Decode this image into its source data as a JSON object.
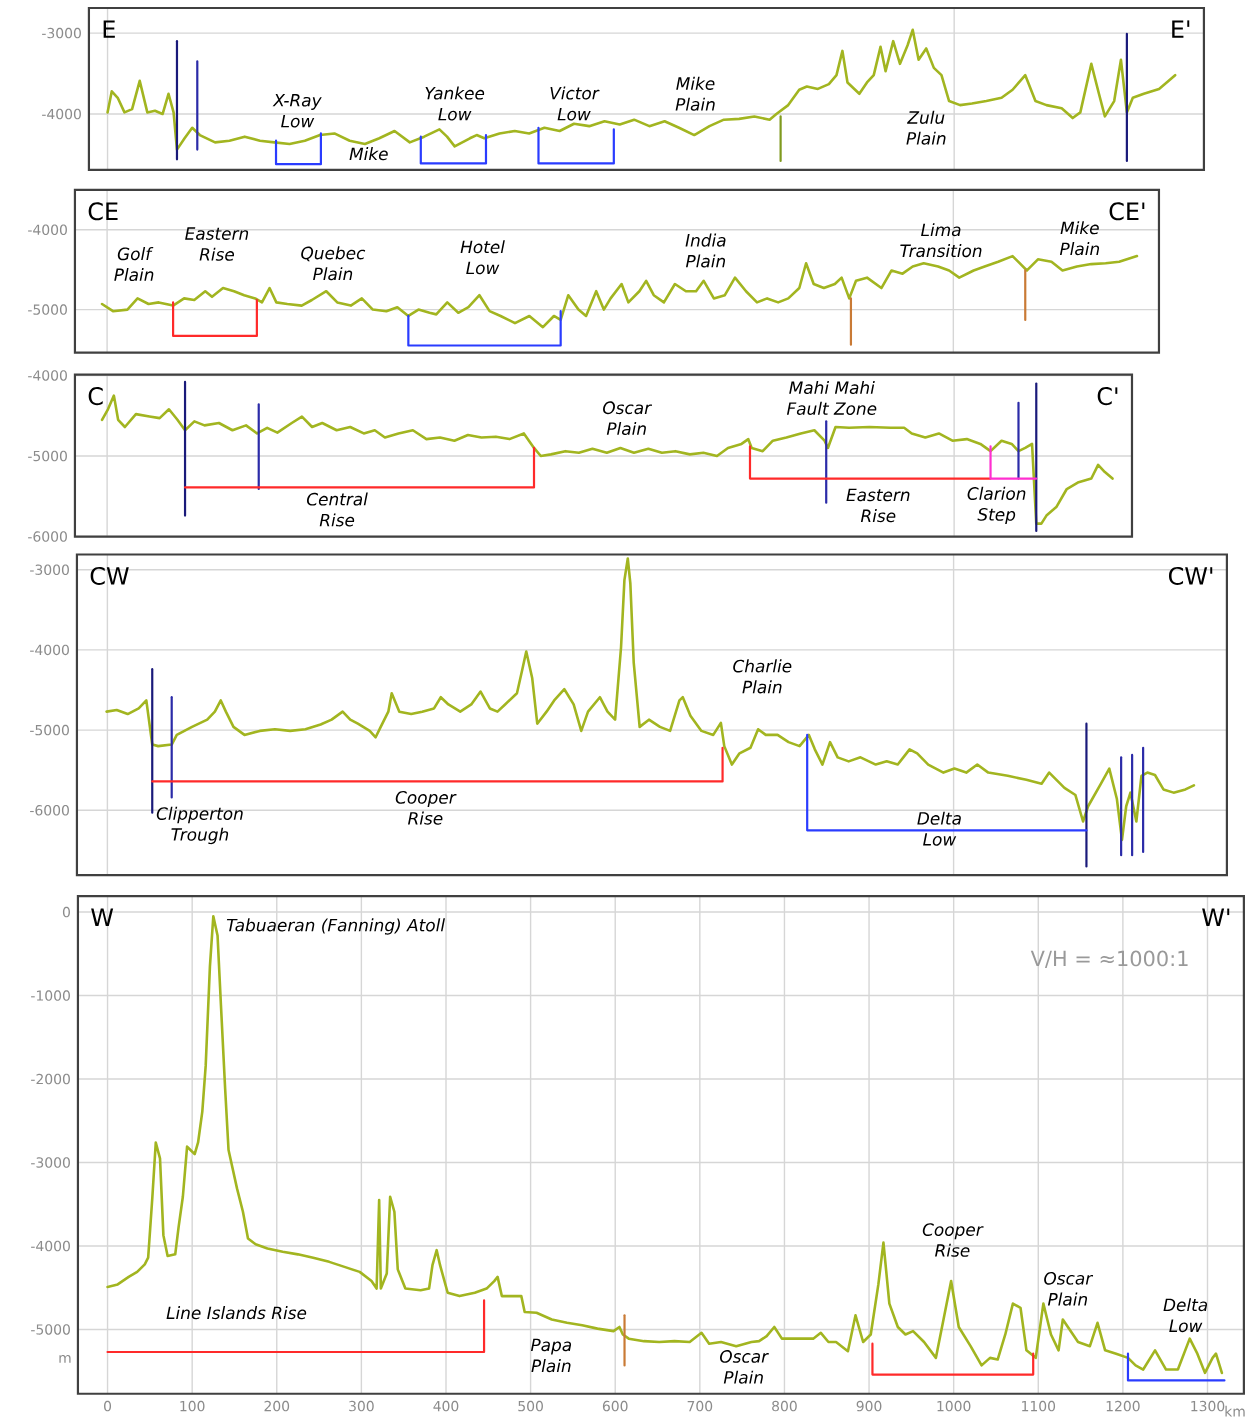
{
  "chart_data": [
    {
      "type": "line",
      "xlim": [
        -22,
        1295
      ],
      "ylim": [
        -4690,
        -2690
      ],
      "xticks": [
        0,
        1000
      ],
      "yticks": [
        -3000,
        -4000
      ],
      "tick_labels": "y",
      "grid": true,
      "series": [
        {
          "color": "#a2b520",
          "x": [
            0,
            5,
            12,
            20,
            29,
            38,
            47,
            56,
            65,
            72,
            78,
            82,
            91,
            100,
            109,
            127,
            144,
            162,
            180,
            197,
            215,
            233,
            251,
            268,
            286,
            304,
            321,
            339,
            357,
            374,
            392,
            401,
            410,
            428,
            436,
            445,
            463,
            481,
            498,
            516,
            534,
            551,
            569,
            587,
            605,
            622,
            640,
            658,
            675,
            693,
            711,
            728,
            746,
            764,
            782,
            790,
            804,
            817,
            826,
            839,
            852,
            861,
            868,
            874,
            888,
            897,
            905,
            913,
            919,
            928,
            936,
            945,
            951,
            958,
            967,
            976,
            985,
            994,
            1007,
            1021,
            1038,
            1056,
            1069,
            1084,
            1096,
            1109,
            1127,
            1140,
            1149,
            1162,
            1171,
            1178,
            1189,
            1197,
            1204,
            1211,
            1224,
            1242,
            1251,
            1261
          ],
          "values": [
            -3980,
            -3720,
            -3800,
            -3980,
            -3940,
            -3590,
            -3980,
            -3960,
            -4000,
            -3750,
            -3980,
            -4440,
            -4300,
            -4170,
            -4260,
            -4350,
            -4330,
            -4280,
            -4330,
            -4350,
            -4370,
            -4330,
            -4260,
            -4240,
            -4330,
            -4370,
            -4300,
            -4210,
            -4350,
            -4280,
            -4190,
            -4280,
            -4400,
            -4300,
            -4260,
            -4300,
            -4240,
            -4210,
            -4240,
            -4170,
            -4210,
            -4120,
            -4150,
            -4090,
            -4130,
            -4070,
            -4150,
            -4090,
            -4170,
            -4260,
            -4150,
            -4070,
            -4060,
            -4030,
            -4070,
            -4000,
            -3890,
            -3700,
            -3660,
            -3690,
            -3630,
            -3520,
            -3220,
            -3610,
            -3750,
            -3610,
            -3520,
            -3170,
            -3470,
            -3100,
            -3380,
            -3150,
            -2960,
            -3330,
            -3190,
            -3430,
            -3520,
            -3840,
            -3890,
            -3870,
            -3840,
            -3800,
            -3700,
            -3520,
            -3840,
            -3890,
            -3930,
            -4050,
            -3980,
            -3380,
            -3750,
            -4030,
            -3840,
            -3330,
            -3980,
            -3800,
            -3750,
            -3690,
            -3610,
            -3520
          ]
        },
        {
          "color": "#7f9a1e",
          "x": [
            795,
            795
          ],
          "values": [
            -4030,
            -4580
          ]
        },
        {
          "color": "#1a1a7a",
          "x": [
            82,
            82
          ],
          "values": [
            -3100,
            -4560
          ]
        },
        {
          "color": "#2b2ba8",
          "x": [
            106,
            106
          ],
          "values": [
            -3350,
            -4440
          ]
        },
        {
          "color": "#1a1a7a",
          "x": [
            1204,
            1204
          ],
          "values": [
            -3010,
            -4580
          ]
        },
        {
          "color": "#2a3cff",
          "x": [
            199,
            199,
            252,
            252
          ],
          "values": [
            -4330,
            -4620,
            -4620,
            -4240
          ]
        },
        {
          "color": "#2a3cff",
          "x": [
            370,
            370,
            447,
            447
          ],
          "values": [
            -4280,
            -4610,
            -4610,
            -4260
          ]
        },
        {
          "color": "#2a3cff",
          "x": [
            509,
            509,
            598,
            598
          ],
          "values": [
            -4170,
            -4610,
            -4610,
            -4190
          ]
        }
      ],
      "annotations": [
        "E",
        "E'",
        "X-Ray Low",
        "Mike",
        "Yankee Low",
        "Victor Low",
        "Mike Plain",
        "Zulu Plain"
      ]
    },
    {
      "type": "line",
      "xlim": [
        -38,
        1243
      ],
      "ylim": [
        -5540,
        -3500
      ],
      "xticks": [
        0,
        1000
      ],
      "yticks": [
        -4000,
        -5000
      ],
      "tick_labels": "y",
      "grid": true,
      "series": [
        {
          "color": "#a2b520",
          "x": [
            -6,
            7,
            24,
            36,
            49,
            61,
            78,
            91,
            103,
            116,
            124,
            137,
            150,
            162,
            175,
            183,
            192,
            200,
            213,
            230,
            242,
            259,
            272,
            288,
            301,
            314,
            330,
            343,
            356,
            368,
            381,
            389,
            402,
            415,
            427,
            440,
            452,
            465,
            482,
            499,
            515,
            528,
            536,
            545,
            557,
            566,
            578,
            587,
            595,
            608,
            616,
            629,
            637,
            646,
            658,
            671,
            684,
            696,
            705,
            717,
            730,
            742,
            755,
            768,
            780,
            793,
            805,
            818,
            826,
            835,
            847,
            860,
            868,
            877,
            885,
            898,
            915,
            927,
            940,
            952,
            965,
            982,
            995,
            1007,
            1024,
            1037,
            1053,
            1070,
            1087,
            1100,
            1116,
            1129,
            1146,
            1163,
            1180,
            1196,
            1217
          ],
          "values": [
            -4930,
            -5020,
            -5000,
            -4860,
            -4930,
            -4910,
            -4950,
            -4860,
            -4880,
            -4770,
            -4840,
            -4730,
            -4770,
            -4820,
            -4860,
            -4910,
            -4730,
            -4910,
            -4930,
            -4950,
            -4880,
            -4770,
            -4910,
            -4950,
            -4860,
            -5000,
            -5020,
            -4970,
            -5080,
            -5000,
            -5040,
            -5060,
            -4910,
            -5040,
            -4970,
            -4820,
            -5020,
            -5080,
            -5170,
            -5080,
            -5220,
            -5080,
            -5130,
            -4820,
            -5000,
            -5080,
            -4770,
            -5000,
            -4860,
            -4680,
            -4910,
            -4770,
            -4640,
            -4820,
            -4910,
            -4680,
            -4770,
            -4770,
            -4640,
            -4860,
            -4820,
            -4600,
            -4770,
            -4910,
            -4860,
            -4910,
            -4860,
            -4730,
            -4420,
            -4680,
            -4730,
            -4680,
            -4600,
            -4860,
            -4640,
            -4600,
            -4730,
            -4510,
            -4550,
            -4460,
            -4420,
            -4460,
            -4510,
            -4600,
            -4510,
            -4460,
            -4400,
            -4330,
            -4510,
            -4370,
            -4400,
            -4510,
            -4460,
            -4430,
            -4420,
            -4400,
            -4330
          ]
        },
        {
          "color": "#c97a35",
          "x": [
            879,
            879
          ],
          "values": [
            -4860,
            -5440
          ]
        },
        {
          "color": "#c97a35",
          "x": [
            1085,
            1085
          ],
          "values": [
            -4510,
            -5130
          ]
        },
        {
          "color": "#ff2a2a",
          "x": [
            78,
            78,
            177,
            177
          ],
          "values": [
            -4910,
            -5330,
            -5330,
            -4880
          ]
        },
        {
          "color": "#2a3cff",
          "x": [
            356,
            356,
            536,
            536
          ],
          "values": [
            -5080,
            -5450,
            -5450,
            -5020
          ]
        }
      ],
      "annotations": [
        "CE",
        "CE'",
        "Golf Plain",
        "Eastern Rise",
        "Quebec Plain",
        "Hotel Low",
        "India Plain",
        "Lima Transition",
        "Mike Plain"
      ]
    },
    {
      "type": "line",
      "xlim": [
        -38,
        1210
      ],
      "ylim": [
        -6000,
        -3990
      ],
      "xticks": [
        0,
        1000
      ],
      "yticks": [
        -4000,
        -5000,
        -6000
      ],
      "tick_labels": "y",
      "grid": true,
      "series": [
        {
          "color": "#a2b520",
          "x": [
            -6,
            1,
            8,
            13,
            21,
            34,
            50,
            62,
            73,
            83,
            92,
            103,
            115,
            132,
            148,
            164,
            177,
            189,
            201,
            218,
            230,
            242,
            254,
            271,
            287,
            303,
            316,
            328,
            344,
            361,
            377,
            393,
            410,
            426,
            442,
            459,
            475,
            492,
            504,
            512,
            524,
            541,
            557,
            573,
            590,
            606,
            622,
            639,
            655,
            671,
            688,
            704,
            720,
            733,
            749,
            757,
            761,
            774,
            786,
            802,
            819,
            835,
            847,
            851,
            860,
            876,
            900,
            925,
            941,
            950,
            966,
            982,
            998,
            1015,
            1031,
            1043,
            1056,
            1068,
            1076,
            1084,
            1092,
            1097,
            1103,
            1109,
            1121,
            1133,
            1146,
            1162,
            1170,
            1178,
            1187
          ],
          "values": [
            -4550,
            -4420,
            -4250,
            -4550,
            -4640,
            -4480,
            -4510,
            -4530,
            -4420,
            -4550,
            -4680,
            -4570,
            -4620,
            -4590,
            -4680,
            -4620,
            -4720,
            -4650,
            -4710,
            -4590,
            -4510,
            -4640,
            -4590,
            -4680,
            -4640,
            -4720,
            -4680,
            -4770,
            -4720,
            -4680,
            -4790,
            -4770,
            -4810,
            -4740,
            -4770,
            -4760,
            -4790,
            -4720,
            -4900,
            -5000,
            -4980,
            -4940,
            -4960,
            -4910,
            -4960,
            -4900,
            -4960,
            -4910,
            -4960,
            -4940,
            -4980,
            -4960,
            -5000,
            -4900,
            -4850,
            -4790,
            -4900,
            -4940,
            -4810,
            -4770,
            -4720,
            -4680,
            -4810,
            -4900,
            -4640,
            -4650,
            -4640,
            -4650,
            -4650,
            -4720,
            -4770,
            -4720,
            -4810,
            -4790,
            -4850,
            -4940,
            -4810,
            -4850,
            -4940,
            -4900,
            -4850,
            -5840,
            -5840,
            -5740,
            -5630,
            -5410,
            -5330,
            -5280,
            -5110,
            -5200,
            -5280
          ]
        },
        {
          "color": "#1a1a7a",
          "x": [
            92,
            92
          ],
          "values": [
            -4080,
            -5740
          ]
        },
        {
          "color": "#2b2ba8",
          "x": [
            179,
            179
          ],
          "values": [
            -4360,
            -5410
          ]
        },
        {
          "color": "#2b2ba8",
          "x": [
            849,
            849
          ],
          "values": [
            -4570,
            -5580
          ]
        },
        {
          "color": "#2b2ba8",
          "x": [
            1076,
            1076
          ],
          "values": [
            -4340,
            -5280
          ]
        },
        {
          "color": "#1a1a7a",
          "x": [
            1097,
            1097
          ],
          "values": [
            -4100,
            -5930
          ]
        },
        {
          "color": "#ff2a2a",
          "x": [
            92,
            504,
            504
          ],
          "values": [
            -5390,
            -5390,
            -4900
          ]
        },
        {
          "color": "#ff2a2a",
          "x": [
            759,
            759,
            1043
          ],
          "values": [
            -4880,
            -5280,
            -5280
          ]
        },
        {
          "color": "#ff2fd0",
          "x": [
            1043,
            1043,
            1097
          ],
          "values": [
            -4880,
            -5280,
            -5280
          ]
        }
      ],
      "annotations": [
        "C",
        "C'",
        "Oscar Plain",
        "Mahi Mahi Fault Zone",
        "Central Rise",
        "Eastern Rise",
        "Clarion Step"
      ]
    },
    {
      "type": "line",
      "xlim": [
        -36,
        1323
      ],
      "ylim": [
        -6810,
        -2810
      ],
      "xticks": [
        0,
        1000
      ],
      "yticks": [
        -3000,
        -4000,
        -5000,
        -6000
      ],
      "tick_labels": "y",
      "grid": true,
      "series": [
        {
          "color": "#a2b520",
          "x": [
            -1,
            11,
            24,
            37,
            46,
            53,
            60,
            76,
            82,
            100,
            118,
            127,
            134,
            140,
            149,
            162,
            180,
            198,
            216,
            234,
            252,
            265,
            278,
            287,
            296,
            310,
            317,
            323,
            332,
            336,
            345,
            359,
            372,
            386,
            394,
            403,
            417,
            430,
            441,
            452,
            461,
            470,
            484,
            490,
            495,
            502,
            508,
            519,
            528,
            540,
            551,
            560,
            568,
            582,
            591,
            600,
            607,
            611,
            615,
            618,
            622,
            629,
            640,
            653,
            665,
            676,
            680,
            689,
            702,
            716,
            725,
            729,
            738,
            747,
            760,
            769,
            778,
            792,
            805,
            818,
            829,
            836,
            845,
            854,
            863,
            876,
            890,
            908,
            921,
            934,
            948,
            957,
            970,
            988,
            1001,
            1015,
            1028,
            1041,
            1064,
            1086,
            1104,
            1113,
            1131,
            1144,
            1153,
            1159,
            1174,
            1184,
            1193,
            1199,
            1204,
            1209,
            1216,
            1222,
            1229,
            1238,
            1248,
            1260,
            1274,
            1284
          ],
          "values": [
            -4770,
            -4750,
            -4800,
            -4730,
            -4630,
            -5180,
            -5200,
            -5180,
            -5060,
            -4960,
            -4870,
            -4770,
            -4630,
            -4770,
            -4960,
            -5060,
            -5010,
            -4990,
            -5010,
            -4990,
            -4930,
            -4870,
            -4770,
            -4870,
            -4920,
            -5010,
            -5090,
            -4960,
            -4770,
            -4540,
            -4770,
            -4800,
            -4770,
            -4730,
            -4590,
            -4680,
            -4770,
            -4680,
            -4520,
            -4730,
            -4770,
            -4680,
            -4540,
            -4260,
            -4020,
            -4350,
            -4920,
            -4770,
            -4630,
            -4490,
            -4680,
            -5010,
            -4770,
            -4590,
            -4770,
            -4870,
            -3970,
            -3130,
            -2860,
            -3170,
            -4160,
            -4960,
            -4870,
            -4960,
            -5010,
            -4630,
            -4590,
            -4820,
            -5010,
            -5060,
            -4910,
            -5200,
            -5430,
            -5290,
            -5220,
            -4990,
            -5060,
            -5060,
            -5150,
            -5200,
            -5060,
            -5240,
            -5430,
            -5150,
            -5340,
            -5390,
            -5340,
            -5430,
            -5390,
            -5430,
            -5240,
            -5290,
            -5430,
            -5530,
            -5480,
            -5530,
            -5430,
            -5530,
            -5570,
            -5620,
            -5670,
            -5530,
            -5720,
            -5810,
            -6140,
            -5950,
            -5670,
            -5480,
            -5860,
            -6370,
            -5950,
            -5780,
            -6140,
            -5570,
            -5530,
            -5560,
            -5740,
            -5780,
            -5740,
            -5690
          ]
        },
        {
          "color": "#1a1a7a",
          "x": [
            53,
            53
          ],
          "values": [
            -4240,
            -6030
          ]
        },
        {
          "color": "#2b2ba8",
          "x": [
            76,
            76
          ],
          "values": [
            -4590,
            -5840
          ]
        },
        {
          "color": "#1a1a7a",
          "x": [
            1157,
            1157
          ],
          "values": [
            -4920,
            -6700
          ]
        },
        {
          "color": "#2b2ba8",
          "x": [
            1198,
            1198
          ],
          "values": [
            -5340,
            -6560
          ]
        },
        {
          "color": "#2b2ba8",
          "x": [
            1211,
            1211
          ],
          "values": [
            -5310,
            -6560
          ]
        },
        {
          "color": "#2b2ba8",
          "x": [
            1224,
            1224
          ],
          "values": [
            -5220,
            -6520
          ]
        },
        {
          "color": "#ff2a2a",
          "x": [
            53,
            727,
            727
          ],
          "values": [
            -5640,
            -5640,
            -5220
          ]
        },
        {
          "color": "#2a3cff",
          "x": [
            827,
            827,
            1157
          ],
          "values": [
            -5060,
            -6250,
            -6250
          ]
        }
      ],
      "annotations": [
        "CW",
        "CW'",
        "Clipperton Trough",
        "Cooper Rise",
        "Charlie Plain",
        "Delta Low"
      ]
    },
    {
      "type": "line",
      "xlim": [
        -35,
        1343
      ],
      "ylim": [
        -5770,
        190
      ],
      "xticks": [
        0,
        100,
        200,
        300,
        400,
        500,
        600,
        700,
        800,
        900,
        1000,
        1100,
        1200,
        1300
      ],
      "yticks": [
        0,
        -1000,
        -2000,
        -3000,
        -4000,
        -5000
      ],
      "grid": true,
      "xlabel": "km",
      "ylabel": "m",
      "series": [
        {
          "color": "#a2b520",
          "x": [
            0,
            12,
            25,
            35,
            44,
            48,
            53,
            57,
            62,
            66,
            71,
            80,
            84,
            89,
            94,
            98,
            103,
            107,
            112,
            116,
            121,
            125,
            130,
            134,
            139,
            143,
            153,
            160,
            166,
            175,
            189,
            207,
            225,
            243,
            262,
            280,
            298,
            312,
            318,
            321,
            323,
            330,
            334,
            339,
            343,
            352,
            370,
            380,
            384,
            389,
            393,
            402,
            416,
            434,
            448,
            457,
            461,
            466,
            475,
            489,
            493,
            507,
            525,
            543,
            561,
            579,
            598,
            605,
            609,
            616,
            634,
            652,
            670,
            688,
            702,
            711,
            725,
            743,
            761,
            770,
            779,
            788,
            797,
            816,
            834,
            843,
            852,
            861,
            875,
            884,
            893,
            902,
            911,
            917,
            924,
            934,
            943,
            952,
            965,
            979,
            988,
            997,
            1006,
            1020,
            1033,
            1043,
            1052,
            1061,
            1070,
            1079,
            1086,
            1097,
            1106,
            1115,
            1124,
            1129,
            1141,
            1147,
            1161,
            1170,
            1179,
            1192,
            1206,
            1215,
            1224,
            1238,
            1251,
            1265,
            1279,
            1288,
            1297,
            1306,
            1310,
            1317
          ],
          "values": [
            -4490,
            -4460,
            -4370,
            -4310,
            -4220,
            -4140,
            -3410,
            -2760,
            -2950,
            -3870,
            -4120,
            -4100,
            -3770,
            -3410,
            -2810,
            -2850,
            -2900,
            -2760,
            -2390,
            -1840,
            -650,
            -50,
            -280,
            -1110,
            -2120,
            -2850,
            -3310,
            -3590,
            -3910,
            -3980,
            -4030,
            -4070,
            -4100,
            -4140,
            -4190,
            -4250,
            -4310,
            -4420,
            -4510,
            -3450,
            -4510,
            -4330,
            -3410,
            -3590,
            -4280,
            -4510,
            -4530,
            -4510,
            -4230,
            -4050,
            -4230,
            -4560,
            -4600,
            -4560,
            -4510,
            -4420,
            -4370,
            -4600,
            -4600,
            -4600,
            -4790,
            -4800,
            -4880,
            -4920,
            -4950,
            -4990,
            -5020,
            -4970,
            -5060,
            -5110,
            -5140,
            -5150,
            -5140,
            -5150,
            -5040,
            -5170,
            -5150,
            -5200,
            -5150,
            -5140,
            -5080,
            -4970,
            -5110,
            -5110,
            -5110,
            -5040,
            -5150,
            -5150,
            -5260,
            -4830,
            -5150,
            -5060,
            -4460,
            -3960,
            -4690,
            -4970,
            -5060,
            -5020,
            -5150,
            -5340,
            -4880,
            -4420,
            -4970,
            -5200,
            -5430,
            -5340,
            -5360,
            -5060,
            -4690,
            -4740,
            -5250,
            -5340,
            -4690,
            -5060,
            -5250,
            -4880,
            -5060,
            -5150,
            -5200,
            -4920,
            -5250,
            -5290,
            -5340,
            -5430,
            -5480,
            -5250,
            -5480,
            -5480,
            -5110,
            -5290,
            -5520,
            -5340,
            -5290,
            -5520
          ]
        },
        {
          "color": "#c97a35",
          "x": [
            611,
            611
          ],
          "values": [
            -4830,
            -5430
          ]
        },
        {
          "color": "#ff2a2a",
          "x": [
            0,
            445,
            445
          ],
          "values": [
            -5270,
            -5270,
            -4650
          ]
        },
        {
          "color": "#ff2a2a",
          "x": [
            904,
            904,
            1094,
            1094
          ],
          "values": [
            -5170,
            -5540,
            -5540,
            -5290
          ]
        },
        {
          "color": "#2a3cff",
          "x": [
            1206,
            1206,
            1320
          ],
          "values": [
            -5290,
            -5610,
            -5610
          ]
        }
      ],
      "annotations": [
        "W",
        "W'",
        "V/H = ≈1000:1",
        "Tabuaeran (Fanning) Atoll",
        "Line Islands Rise",
        "Papa Plain",
        "Oscar Plain",
        "Cooper Rise",
        "Oscar Plain",
        "Delta Low"
      ]
    }
  ]
}
